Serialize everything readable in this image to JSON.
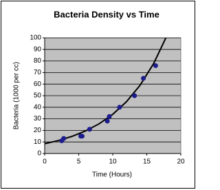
{
  "chart_data": {
    "type": "scatter",
    "title": "Bacteria Density vs Time",
    "xlabel": "Time (Hours)",
    "ylabel": "Bacteria (1000 per cc)",
    "series": [
      {
        "color": "#1c1c8c",
        "x": [
          2.5,
          2.8,
          5.3,
          5.5,
          6.6,
          9.2,
          9.5,
          11,
          13.2,
          14.5,
          16.3
        ],
        "values": [
          11,
          13,
          15,
          15,
          21,
          28,
          32,
          40,
          50,
          65,
          76
        ]
      },
      {
        "color": "#000000",
        "line": true,
        "x": [
          0,
          2,
          4,
          6,
          8,
          10,
          12,
          14,
          16,
          18
        ],
        "values": [
          8.5,
          11.2,
          14.8,
          19.5,
          25.7,
          33.9,
          44.7,
          58.9,
          77.7,
          102.4
        ]
      }
    ],
    "xlim": [
      0,
      20
    ],
    "xticks": [
      0,
      5,
      10,
      15,
      20
    ],
    "ylim": [
      0,
      100
    ],
    "yticks": [
      0,
      10,
      20,
      30,
      40,
      50,
      60,
      70,
      80,
      90,
      100
    ],
    "grid": true,
    "plot_background": "#c0c0c0"
  }
}
